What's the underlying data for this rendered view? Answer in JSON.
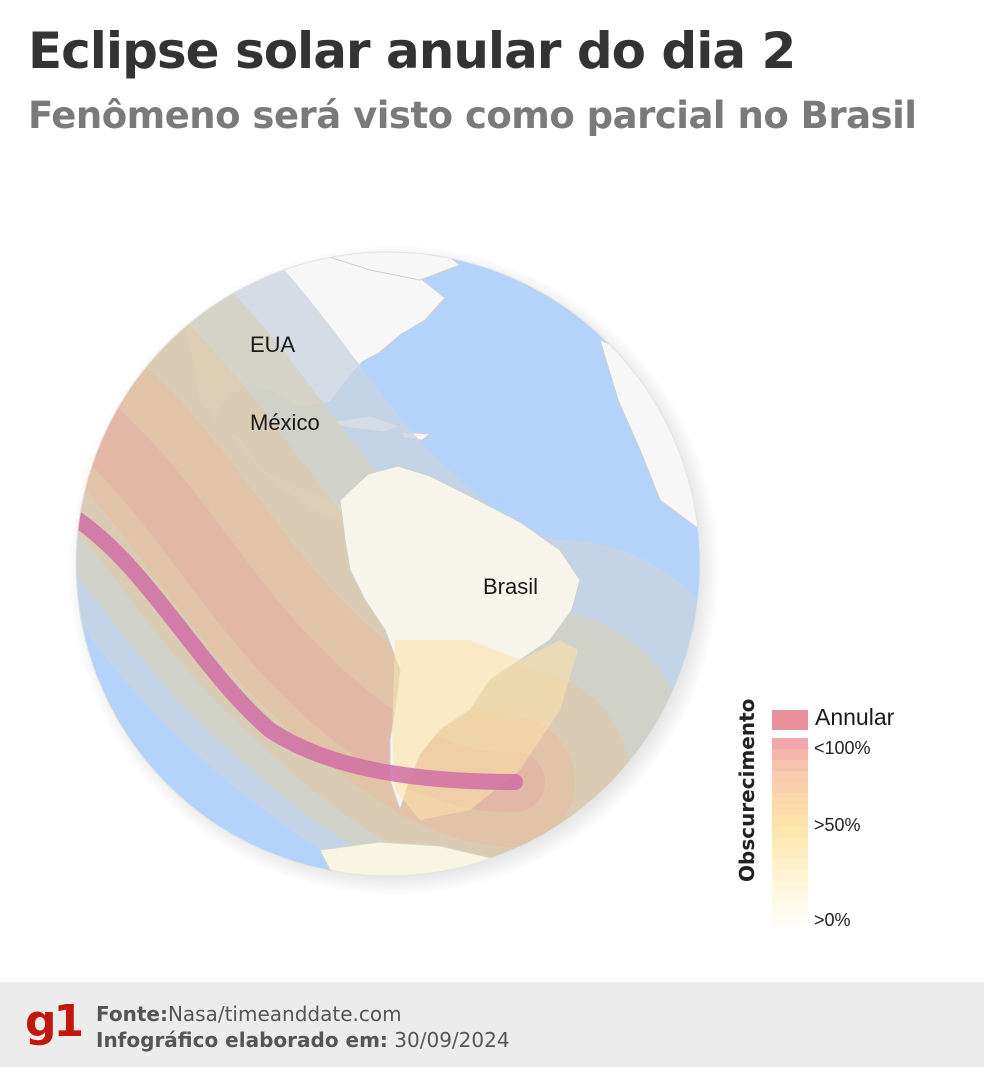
{
  "title": "Eclipse solar anular do dia 2",
  "subtitle": "Fenômeno será visto como parcial no Brasil",
  "map": {
    "labels": {
      "usa": "EUA",
      "mexico": "México",
      "brazil": "Brasil"
    }
  },
  "legend": {
    "axis_title": "Obscurecimento",
    "annular_label": "Annular",
    "annular_color": "#e8909c",
    "ticks": {
      "top": "<100%",
      "mid": ">50%",
      "bottom": ">0%"
    },
    "ramp_colors": [
      "#f2a7a9",
      "#f5b5ab",
      "#f7c2ad",
      "#f9ccaf",
      "#facfae",
      "#fbd6ab",
      "#fcdca9",
      "#fde1a8",
      "#fde5ae",
      "#fde9b5",
      "#fdedbf",
      "#fdf1c9",
      "#fef4d3",
      "#fef7dd",
      "#fef9e6",
      "#fefbee",
      "#fffdf5"
    ]
  },
  "footer": {
    "logo": "g1",
    "source_label": "Fonte:",
    "source_value": "Nasa/timeanddate.com",
    "date_label": "Infográfico elaborado em:",
    "date_value": "30/09/2024"
  }
}
